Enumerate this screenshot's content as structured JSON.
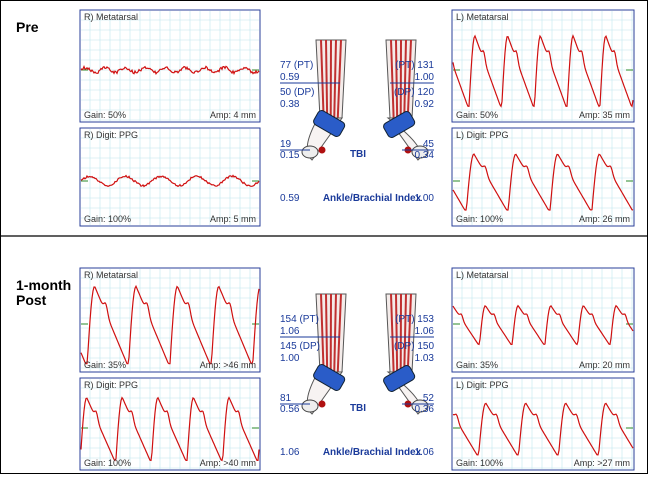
{
  "sections": [
    {
      "label_lines": [
        "Pre"
      ],
      "panels": [
        {
          "title": "R) Metatarsal",
          "gain": "Gain: 50%",
          "amp": "Amp: 4 mm"
        },
        {
          "title": "R) Digit: PPG",
          "gain": "Gain: 100%",
          "amp": "Amp: 5 mm"
        },
        {
          "title": "L) Metatarsal",
          "gain": "Gain: 50%",
          "amp": "Amp: 35 mm"
        },
        {
          "title": "L) Digit: PPG",
          "gain": "Gain: 100%",
          "amp": "Amp: 26 mm"
        }
      ],
      "center": {
        "left": [
          "77 (PT)",
          "0.59",
          "50 (DP)",
          "0.38"
        ],
        "right": [
          "(PT) 131",
          "1.00",
          "(DP) 120",
          "0.92"
        ],
        "toe_left": [
          "19",
          "0.15"
        ],
        "toe_right": [
          "45",
          "0.34"
        ],
        "tbi": "TBI",
        "abi_left": "0.59",
        "abi_label": "Ankle/Brachial Index",
        "abi_right": "1.00"
      }
    },
    {
      "label_lines": [
        "1-month",
        "Post"
      ],
      "panels": [
        {
          "title": "R) Metatarsal",
          "gain": "Gain: 35%",
          "amp": "Amp: >46 mm"
        },
        {
          "title": "R) Digit: PPG",
          "gain": "Gain: 100%",
          "amp": "Amp: >40 mm"
        },
        {
          "title": "L) Metatarsal",
          "gain": "Gain: 35%",
          "amp": "Amp: 20 mm"
        },
        {
          "title": "L) Digit: PPG",
          "gain": "Gain: 100%",
          "amp": "Amp: >27 mm"
        }
      ],
      "center": {
        "left": [
          "154 (PT)",
          "1.06",
          "145 (DP)",
          "1.00"
        ],
        "right": [
          "(PT) 153",
          "1.06",
          "(DP) 150",
          "1.03"
        ],
        "toe_left": [
          "81",
          "0.56"
        ],
        "toe_right": [
          "52",
          "0.36"
        ],
        "tbi": "TBI",
        "abi_left": "1.06",
        "abi_label": "Ankle/Brachial Index",
        "abi_right": "1.06"
      }
    }
  ]
}
